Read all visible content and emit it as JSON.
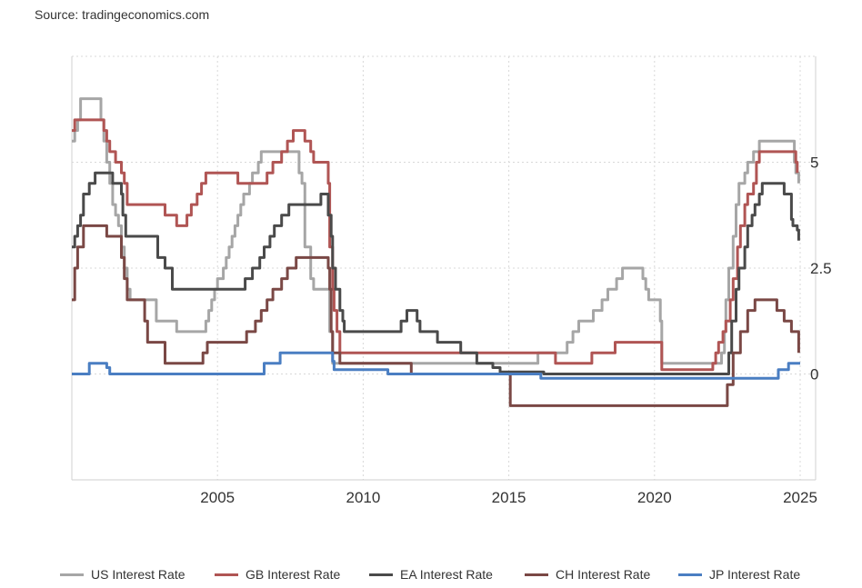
{
  "source": "Source: tradingeconomics.com",
  "chart_data": {
    "type": "line",
    "grid": true,
    "xlim": [
      2000.0,
      2025.5
    ],
    "ylim": [
      -2.5,
      7.5
    ],
    "x_ticks": [
      2005,
      2010,
      2015,
      2020,
      2025
    ],
    "x_tick_labels": [
      "2005",
      "2010",
      "2015",
      "2020",
      "2025"
    ],
    "y_ticks": [
      5,
      2.5,
      0
    ],
    "y_tick_labels": [
      "5",
      "2.5",
      "0"
    ],
    "legend_position": "bottom",
    "series": [
      {
        "name": "US Interest Rate",
        "color": "#a6a6a6",
        "points": [
          [
            2000.0,
            5.5
          ],
          [
            2000.1,
            5.75
          ],
          [
            2000.2,
            6.0
          ],
          [
            2000.3,
            6.5
          ],
          [
            2000.9,
            6.5
          ],
          [
            2001.0,
            6.0
          ],
          [
            2001.1,
            5.5
          ],
          [
            2001.2,
            5.0
          ],
          [
            2001.3,
            4.5
          ],
          [
            2001.4,
            4.0
          ],
          [
            2001.5,
            3.75
          ],
          [
            2001.6,
            3.5
          ],
          [
            2001.7,
            3.0
          ],
          [
            2001.8,
            2.5
          ],
          [
            2001.9,
            2.0
          ],
          [
            2002.0,
            1.75
          ],
          [
            2002.8,
            1.75
          ],
          [
            2002.9,
            1.25
          ],
          [
            2003.5,
            1.25
          ],
          [
            2003.6,
            1.0
          ],
          [
            2004.5,
            1.0
          ],
          [
            2004.6,
            1.25
          ],
          [
            2004.7,
            1.5
          ],
          [
            2004.8,
            1.75
          ],
          [
            2004.9,
            2.0
          ],
          [
            2005.0,
            2.25
          ],
          [
            2005.2,
            2.5
          ],
          [
            2005.3,
            2.75
          ],
          [
            2005.4,
            3.0
          ],
          [
            2005.5,
            3.25
          ],
          [
            2005.6,
            3.5
          ],
          [
            2005.7,
            3.75
          ],
          [
            2005.8,
            4.0
          ],
          [
            2005.9,
            4.25
          ],
          [
            2006.1,
            4.5
          ],
          [
            2006.2,
            4.75
          ],
          [
            2006.4,
            5.0
          ],
          [
            2006.5,
            5.25
          ],
          [
            2007.7,
            5.25
          ],
          [
            2007.8,
            4.75
          ],
          [
            2007.9,
            4.5
          ],
          [
            2008.0,
            3.0
          ],
          [
            2008.2,
            2.25
          ],
          [
            2008.3,
            2.0
          ],
          [
            2008.8,
            2.0
          ],
          [
            2008.85,
            1.0
          ],
          [
            2008.95,
            0.25
          ],
          [
            2015.9,
            0.25
          ],
          [
            2016.0,
            0.5
          ],
          [
            2016.9,
            0.5
          ],
          [
            2017.0,
            0.75
          ],
          [
            2017.2,
            1.0
          ],
          [
            2017.4,
            1.25
          ],
          [
            2017.7,
            1.25
          ],
          [
            2017.9,
            1.5
          ],
          [
            2018.2,
            1.75
          ],
          [
            2018.4,
            2.0
          ],
          [
            2018.7,
            2.25
          ],
          [
            2018.9,
            2.5
          ],
          [
            2019.5,
            2.5
          ],
          [
            2019.6,
            2.25
          ],
          [
            2019.7,
            2.0
          ],
          [
            2019.8,
            1.75
          ],
          [
            2020.15,
            1.75
          ],
          [
            2020.2,
            1.25
          ],
          [
            2020.25,
            0.25
          ],
          [
            2022.2,
            0.25
          ],
          [
            2022.3,
            0.5
          ],
          [
            2022.4,
            1.0
          ],
          [
            2022.45,
            1.75
          ],
          [
            2022.55,
            2.5
          ],
          [
            2022.7,
            3.25
          ],
          [
            2022.8,
            4.0
          ],
          [
            2022.9,
            4.5
          ],
          [
            2023.1,
            4.75
          ],
          [
            2023.2,
            5.0
          ],
          [
            2023.4,
            5.25
          ],
          [
            2023.6,
            5.5
          ],
          [
            2024.7,
            5.5
          ],
          [
            2024.8,
            5.0
          ],
          [
            2024.85,
            4.75
          ],
          [
            2024.95,
            4.5
          ]
        ]
      },
      {
        "name": "GB Interest Rate",
        "color": "#b05554",
        "points": [
          [
            2000.0,
            5.75
          ],
          [
            2000.1,
            6.0
          ],
          [
            2000.9,
            6.0
          ],
          [
            2001.1,
            5.75
          ],
          [
            2001.2,
            5.5
          ],
          [
            2001.3,
            5.25
          ],
          [
            2001.5,
            5.0
          ],
          [
            2001.7,
            4.75
          ],
          [
            2001.8,
            4.5
          ],
          [
            2001.9,
            4.0
          ],
          [
            2003.1,
            4.0
          ],
          [
            2003.2,
            3.75
          ],
          [
            2003.5,
            3.75
          ],
          [
            2003.6,
            3.5
          ],
          [
            2003.9,
            3.5
          ],
          [
            2003.95,
            3.75
          ],
          [
            2004.1,
            4.0
          ],
          [
            2004.3,
            4.25
          ],
          [
            2004.45,
            4.5
          ],
          [
            2004.6,
            4.75
          ],
          [
            2005.6,
            4.75
          ],
          [
            2005.7,
            4.5
          ],
          [
            2006.6,
            4.5
          ],
          [
            2006.7,
            4.75
          ],
          [
            2006.9,
            5.0
          ],
          [
            2007.2,
            5.25
          ],
          [
            2007.4,
            5.5
          ],
          [
            2007.6,
            5.75
          ],
          [
            2007.9,
            5.75
          ],
          [
            2008.0,
            5.5
          ],
          [
            2008.2,
            5.25
          ],
          [
            2008.3,
            5.0
          ],
          [
            2008.75,
            5.0
          ],
          [
            2008.8,
            4.5
          ],
          [
            2008.85,
            3.0
          ],
          [
            2008.95,
            2.0
          ],
          [
            2009.0,
            1.5
          ],
          [
            2009.1,
            1.0
          ],
          [
            2009.2,
            0.5
          ],
          [
            2016.55,
            0.5
          ],
          [
            2016.6,
            0.25
          ],
          [
            2017.8,
            0.25
          ],
          [
            2017.85,
            0.5
          ],
          [
            2018.6,
            0.5
          ],
          [
            2018.65,
            0.75
          ],
          [
            2020.2,
            0.75
          ],
          [
            2020.25,
            0.1
          ],
          [
            2021.9,
            0.1
          ],
          [
            2022.0,
            0.25
          ],
          [
            2022.1,
            0.5
          ],
          [
            2022.2,
            0.75
          ],
          [
            2022.35,
            1.0
          ],
          [
            2022.45,
            1.25
          ],
          [
            2022.6,
            1.75
          ],
          [
            2022.7,
            2.25
          ],
          [
            2022.85,
            3.0
          ],
          [
            2022.95,
            3.5
          ],
          [
            2023.1,
            4.0
          ],
          [
            2023.2,
            4.25
          ],
          [
            2023.4,
            4.5
          ],
          [
            2023.5,
            5.0
          ],
          [
            2023.6,
            5.25
          ],
          [
            2024.6,
            5.25
          ],
          [
            2024.85,
            5.0
          ],
          [
            2024.9,
            4.75
          ]
        ]
      },
      {
        "name": "EA Interest Rate",
        "color": "#4a4a4a",
        "points": [
          [
            2000.0,
            3.0
          ],
          [
            2000.1,
            3.25
          ],
          [
            2000.2,
            3.5
          ],
          [
            2000.3,
            3.75
          ],
          [
            2000.4,
            4.25
          ],
          [
            2000.6,
            4.5
          ],
          [
            2000.8,
            4.75
          ],
          [
            2001.35,
            4.75
          ],
          [
            2001.4,
            4.5
          ],
          [
            2001.65,
            4.5
          ],
          [
            2001.7,
            4.25
          ],
          [
            2001.75,
            3.75
          ],
          [
            2001.85,
            3.25
          ],
          [
            2002.9,
            3.25
          ],
          [
            2002.95,
            2.75
          ],
          [
            2003.2,
            2.5
          ],
          [
            2003.45,
            2.0
          ],
          [
            2005.9,
            2.0
          ],
          [
            2005.95,
            2.25
          ],
          [
            2006.2,
            2.5
          ],
          [
            2006.45,
            2.75
          ],
          [
            2006.6,
            3.0
          ],
          [
            2006.8,
            3.25
          ],
          [
            2006.95,
            3.5
          ],
          [
            2007.2,
            3.75
          ],
          [
            2007.45,
            4.0
          ],
          [
            2008.5,
            4.0
          ],
          [
            2008.55,
            4.25
          ],
          [
            2008.75,
            4.25
          ],
          [
            2008.8,
            3.75
          ],
          [
            2008.9,
            3.25
          ],
          [
            2008.95,
            2.5
          ],
          [
            2009.05,
            2.0
          ],
          [
            2009.2,
            1.5
          ],
          [
            2009.3,
            1.25
          ],
          [
            2009.35,
            1.0
          ],
          [
            2011.25,
            1.0
          ],
          [
            2011.3,
            1.25
          ],
          [
            2011.5,
            1.5
          ],
          [
            2011.8,
            1.5
          ],
          [
            2011.85,
            1.25
          ],
          [
            2011.95,
            1.0
          ],
          [
            2012.5,
            1.0
          ],
          [
            2012.55,
            0.75
          ],
          [
            2013.3,
            0.75
          ],
          [
            2013.35,
            0.5
          ],
          [
            2013.85,
            0.5
          ],
          [
            2013.9,
            0.25
          ],
          [
            2014.4,
            0.25
          ],
          [
            2014.45,
            0.15
          ],
          [
            2014.65,
            0.15
          ],
          [
            2014.7,
            0.05
          ],
          [
            2016.15,
            0.05
          ],
          [
            2016.2,
            0.0
          ],
          [
            2022.5,
            0.0
          ],
          [
            2022.55,
            0.5
          ],
          [
            2022.65,
            1.25
          ],
          [
            2022.8,
            2.0
          ],
          [
            2022.9,
            2.5
          ],
          [
            2023.1,
            3.0
          ],
          [
            2023.2,
            3.5
          ],
          [
            2023.35,
            3.75
          ],
          [
            2023.45,
            4.0
          ],
          [
            2023.6,
            4.25
          ],
          [
            2023.7,
            4.5
          ],
          [
            2024.4,
            4.5
          ],
          [
            2024.45,
            4.25
          ],
          [
            2024.65,
            4.25
          ],
          [
            2024.7,
            3.65
          ],
          [
            2024.75,
            3.5
          ],
          [
            2024.9,
            3.4
          ],
          [
            2024.95,
            3.15
          ]
        ]
      },
      {
        "name": "CH Interest Rate",
        "color": "#7a4845",
        "points": [
          [
            2000.0,
            1.75
          ],
          [
            2000.1,
            2.5
          ],
          [
            2000.2,
            3.0
          ],
          [
            2000.4,
            3.5
          ],
          [
            2001.1,
            3.5
          ],
          [
            2001.2,
            3.25
          ],
          [
            2001.6,
            3.25
          ],
          [
            2001.7,
            2.75
          ],
          [
            2001.8,
            2.25
          ],
          [
            2001.9,
            1.75
          ],
          [
            2002.4,
            1.75
          ],
          [
            2002.5,
            1.25
          ],
          [
            2002.6,
            0.75
          ],
          [
            2003.1,
            0.75
          ],
          [
            2003.2,
            0.25
          ],
          [
            2004.4,
            0.25
          ],
          [
            2004.5,
            0.5
          ],
          [
            2004.65,
            0.75
          ],
          [
            2005.9,
            0.75
          ],
          [
            2006.0,
            1.0
          ],
          [
            2006.3,
            1.25
          ],
          [
            2006.5,
            1.5
          ],
          [
            2006.7,
            1.75
          ],
          [
            2006.9,
            2.0
          ],
          [
            2007.2,
            2.25
          ],
          [
            2007.4,
            2.5
          ],
          [
            2007.7,
            2.75
          ],
          [
            2008.75,
            2.75
          ],
          [
            2008.8,
            2.5
          ],
          [
            2008.85,
            2.0
          ],
          [
            2008.9,
            1.0
          ],
          [
            2008.95,
            0.5
          ],
          [
            2009.2,
            0.25
          ],
          [
            2011.6,
            0.25
          ],
          [
            2011.65,
            0.0
          ],
          [
            2014.95,
            0.0
          ],
          [
            2015.05,
            -0.75
          ],
          [
            2022.45,
            -0.75
          ],
          [
            2022.5,
            -0.25
          ],
          [
            2022.7,
            0.5
          ],
          [
            2022.95,
            1.0
          ],
          [
            2023.2,
            1.5
          ],
          [
            2023.45,
            1.75
          ],
          [
            2024.15,
            1.75
          ],
          [
            2024.2,
            1.5
          ],
          [
            2024.45,
            1.25
          ],
          [
            2024.7,
            1.0
          ],
          [
            2024.95,
            0.5
          ]
        ]
      },
      {
        "name": "JP Interest Rate",
        "color": "#4a7ec2",
        "points": [
          [
            2000.0,
            0.0
          ],
          [
            2000.55,
            0.0
          ],
          [
            2000.6,
            0.25
          ],
          [
            2001.1,
            0.25
          ],
          [
            2001.2,
            0.15
          ],
          [
            2001.3,
            0.0
          ],
          [
            2006.5,
            0.0
          ],
          [
            2006.6,
            0.25
          ],
          [
            2007.1,
            0.25
          ],
          [
            2007.15,
            0.5
          ],
          [
            2008.8,
            0.5
          ],
          [
            2008.95,
            0.3
          ],
          [
            2009.0,
            0.1
          ],
          [
            2010.8,
            0.1
          ],
          [
            2010.85,
            0.0
          ],
          [
            2016.0,
            0.0
          ],
          [
            2016.1,
            -0.1
          ],
          [
            2024.2,
            -0.1
          ],
          [
            2024.25,
            0.1
          ],
          [
            2024.55,
            0.1
          ],
          [
            2024.6,
            0.25
          ],
          [
            2025.0,
            0.25
          ]
        ]
      }
    ]
  }
}
